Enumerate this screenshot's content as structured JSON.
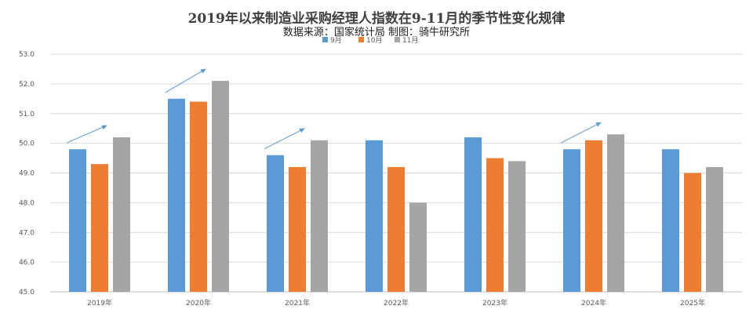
{
  "chart_data": {
    "type": "bar",
    "title": "2019年以来制造业采购经理人指数在9-11月的季节性变化规律",
    "subtitle": "数据来源：国家统计局    制图：骑牛研究所",
    "categories": [
      "2019年",
      "2020年",
      "2021年",
      "2022年",
      "2023年",
      "2024年",
      "2025年"
    ],
    "series": [
      {
        "name": "9月",
        "color": "#5b9bd5",
        "values": [
          49.8,
          51.5,
          49.6,
          50.1,
          50.2,
          49.8,
          49.8
        ]
      },
      {
        "name": "10月",
        "color": "#ed7d31",
        "values": [
          49.3,
          51.4,
          49.2,
          49.2,
          49.5,
          50.1,
          49.0
        ]
      },
      {
        "name": "11月",
        "color": "#a5a5a5",
        "values": [
          50.2,
          52.1,
          50.1,
          48.0,
          49.4,
          50.3,
          49.2
        ]
      }
    ],
    "ylim": [
      45.0,
      53.0
    ],
    "yticks": [
      "45.0",
      "46.0",
      "47.0",
      "48.0",
      "49.0",
      "50.0",
      "51.0",
      "52.0",
      "53.0"
    ],
    "grid": true,
    "legend": "top-center",
    "annotations": {
      "type": "upward-arrow",
      "color": "#5b9bd5",
      "categories": [
        "2019年",
        "2020年",
        "2021年",
        "2024年"
      ]
    }
  }
}
